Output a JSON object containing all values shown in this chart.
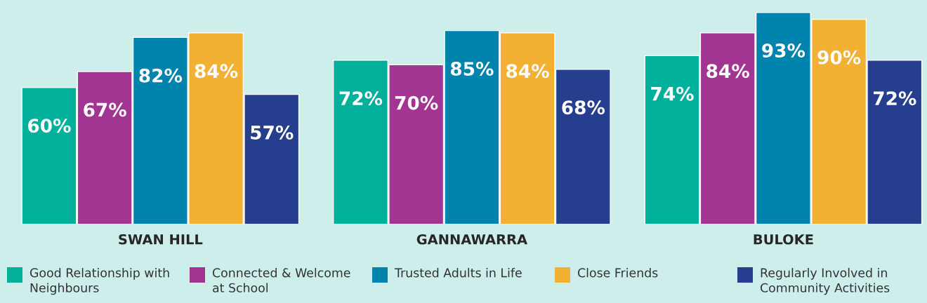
{
  "chart_data": {
    "type": "bar",
    "categories": [
      "SWAN HILL",
      "GANNAWARRA",
      "BULOKE"
    ],
    "series": [
      {
        "name": "Good Relationship with\nNeighbours",
        "color": "#00b09b",
        "values": [
          60,
          72,
          74
        ],
        "value_labels": [
          "60%",
          "72%",
          "74%"
        ]
      },
      {
        "name": "Connected & Welcome\nat School",
        "color": "#a23592",
        "values": [
          67,
          70,
          84
        ],
        "value_labels": [
          "67%",
          "70%",
          "84%"
        ]
      },
      {
        "name": "Trusted Adults in Life",
        "color": "#0083ad",
        "values": [
          82,
          85,
          93
        ],
        "value_labels": [
          "82%",
          "85%",
          "93%"
        ]
      },
      {
        "name": "Close Friends",
        "color": "#f2b132",
        "values": [
          84,
          84,
          90
        ],
        "value_labels": [
          "84%",
          "84%",
          "90%"
        ]
      },
      {
        "name": "Regularly Involved in\nCommunity Activities",
        "color": "#263e8e",
        "values": [
          57,
          68,
          72
        ],
        "value_labels": [
          "57%",
          "68%",
          "72%"
        ]
      }
    ],
    "legend": "bottom",
    "grid": false
  }
}
